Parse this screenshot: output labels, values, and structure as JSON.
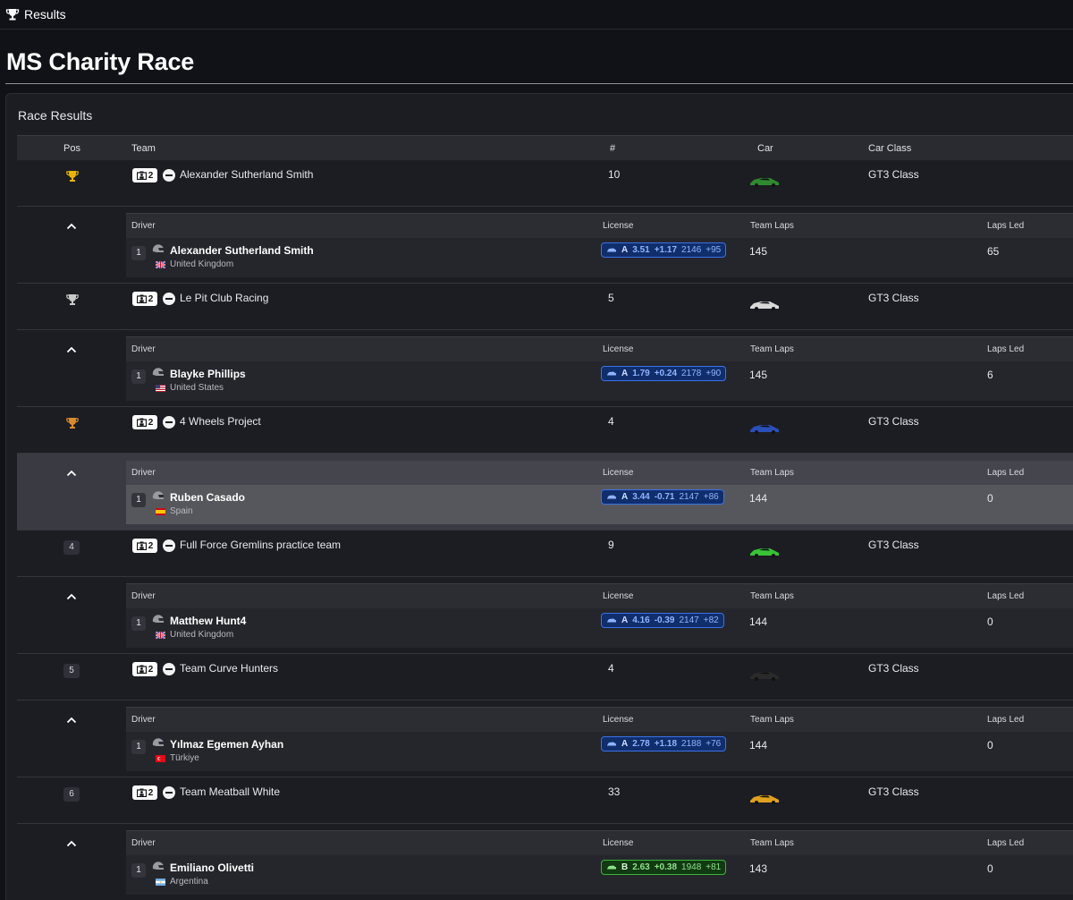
{
  "header": {
    "title": "Results",
    "icon": "trophy-icon"
  },
  "page_title": "MS Charity Race",
  "card_title": "Race Results",
  "columns": {
    "pos": "Pos",
    "team": "Team",
    "num": "#",
    "car": "Car",
    "car_class": "Car Class"
  },
  "sub_columns": {
    "driver": "Driver",
    "license": "License",
    "team_laps": "Team Laps",
    "laps_led": "Laps Led"
  },
  "colors": {
    "gold": "#e8b400",
    "silver": "#c8c8c8",
    "bronze": "#d98a2b",
    "license_a": "#3a72e8",
    "license_b": "#38b538"
  },
  "rows": [
    {
      "pos_type": "gold-trophy",
      "pos": "",
      "team_size": "2",
      "team": "Alexander Sutherland Smith",
      "num": "10",
      "car_class": "GT3 Class",
      "car_color": "#2f8a2f",
      "driver": {
        "pos": "1",
        "name": "Alexander Sutherland Smith",
        "country": "United Kingdom",
        "flag": "uk",
        "license_class": "A",
        "sr": "3.51",
        "sr_delta": "+1.17",
        "irating": "2146",
        "ir_delta": "+95",
        "license_type": "a",
        "team_laps": "145",
        "laps_led": "65"
      }
    },
    {
      "pos_type": "silver-trophy",
      "pos": "",
      "team_size": "2",
      "team": "Le Pit Club Racing",
      "num": "5",
      "car_class": "GT3 Class",
      "car_color": "#d8d8d8",
      "driver": {
        "pos": "1",
        "name": "Blayke Phillips",
        "country": "United States",
        "flag": "us",
        "license_class": "A",
        "sr": "1.79",
        "sr_delta": "+0.24",
        "irating": "2178",
        "ir_delta": "+90",
        "license_type": "a",
        "team_laps": "145",
        "laps_led": "6"
      }
    },
    {
      "pos_type": "bronze-trophy",
      "pos": "",
      "team_size": "2",
      "team": "4 Wheels Project",
      "num": "4",
      "car_class": "GT3 Class",
      "car_color": "#2a4fb8",
      "driver": {
        "pos": "1",
        "name": "Ruben Casado",
        "country": "Spain",
        "flag": "es",
        "license_class": "A",
        "sr": "3.44",
        "sr_delta": "-0.71",
        "irating": "2147",
        "ir_delta": "+86",
        "license_type": "a",
        "team_laps": "144",
        "laps_led": "0"
      }
    },
    {
      "pos_type": "badge",
      "pos": "4",
      "team_size": "2",
      "team": "Full Force Gremlins practice team",
      "num": "9",
      "car_class": "GT3 Class",
      "car_color": "#38c238",
      "driver": {
        "pos": "1",
        "name": "Matthew Hunt4",
        "country": "United Kingdom",
        "flag": "uk",
        "license_class": "A",
        "sr": "4.16",
        "sr_delta": "-0.39",
        "irating": "2147",
        "ir_delta": "+82",
        "license_type": "a",
        "team_laps": "144",
        "laps_led": "0"
      }
    },
    {
      "pos_type": "badge",
      "pos": "5",
      "team_size": "2",
      "team": "Team Curve Hunters",
      "num": "4",
      "car_class": "GT3 Class",
      "car_color": "#2a2a2a",
      "driver": {
        "pos": "1",
        "name": "Yılmaz Egemen Ayhan",
        "country": "Türkiye",
        "flag": "tr",
        "license_class": "A",
        "sr": "2.78",
        "sr_delta": "+1.18",
        "irating": "2188",
        "ir_delta": "+76",
        "license_type": "a",
        "team_laps": "144",
        "laps_led": "0"
      }
    },
    {
      "pos_type": "badge",
      "pos": "6",
      "team_size": "2",
      "team": "Team Meatball White",
      "num": "33",
      "car_class": "GT3 Class",
      "car_color": "#e0a020",
      "driver": {
        "pos": "1",
        "name": "Emiliano Olivetti",
        "country": "Argentina",
        "flag": "ar",
        "license_class": "B",
        "sr": "2.63",
        "sr_delta": "+0.38",
        "irating": "1948",
        "ir_delta": "+81",
        "license_type": "b",
        "team_laps": "143",
        "laps_led": "0"
      }
    }
  ]
}
